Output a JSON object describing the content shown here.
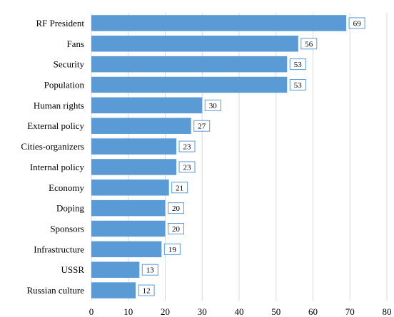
{
  "chart_data": {
    "type": "bar",
    "orientation": "horizontal",
    "categories": [
      "RF President",
      "Fans",
      "Security",
      "Population",
      "Human rights",
      "External policy",
      "Cities-organizers",
      "Internal policy",
      "Economy",
      "Doping",
      "Sponsors",
      "Infrastructure",
      "USSR",
      "Russian culture"
    ],
    "values": [
      69,
      56,
      53,
      53,
      30,
      27,
      23,
      23,
      21,
      20,
      20,
      19,
      13,
      12
    ],
    "xlim": [
      0,
      80
    ],
    "xticks": [
      0,
      10,
      20,
      30,
      40,
      50,
      60,
      70,
      80
    ],
    "grid": true,
    "data_labels": true,
    "bar_color": "#5b9bd5"
  }
}
